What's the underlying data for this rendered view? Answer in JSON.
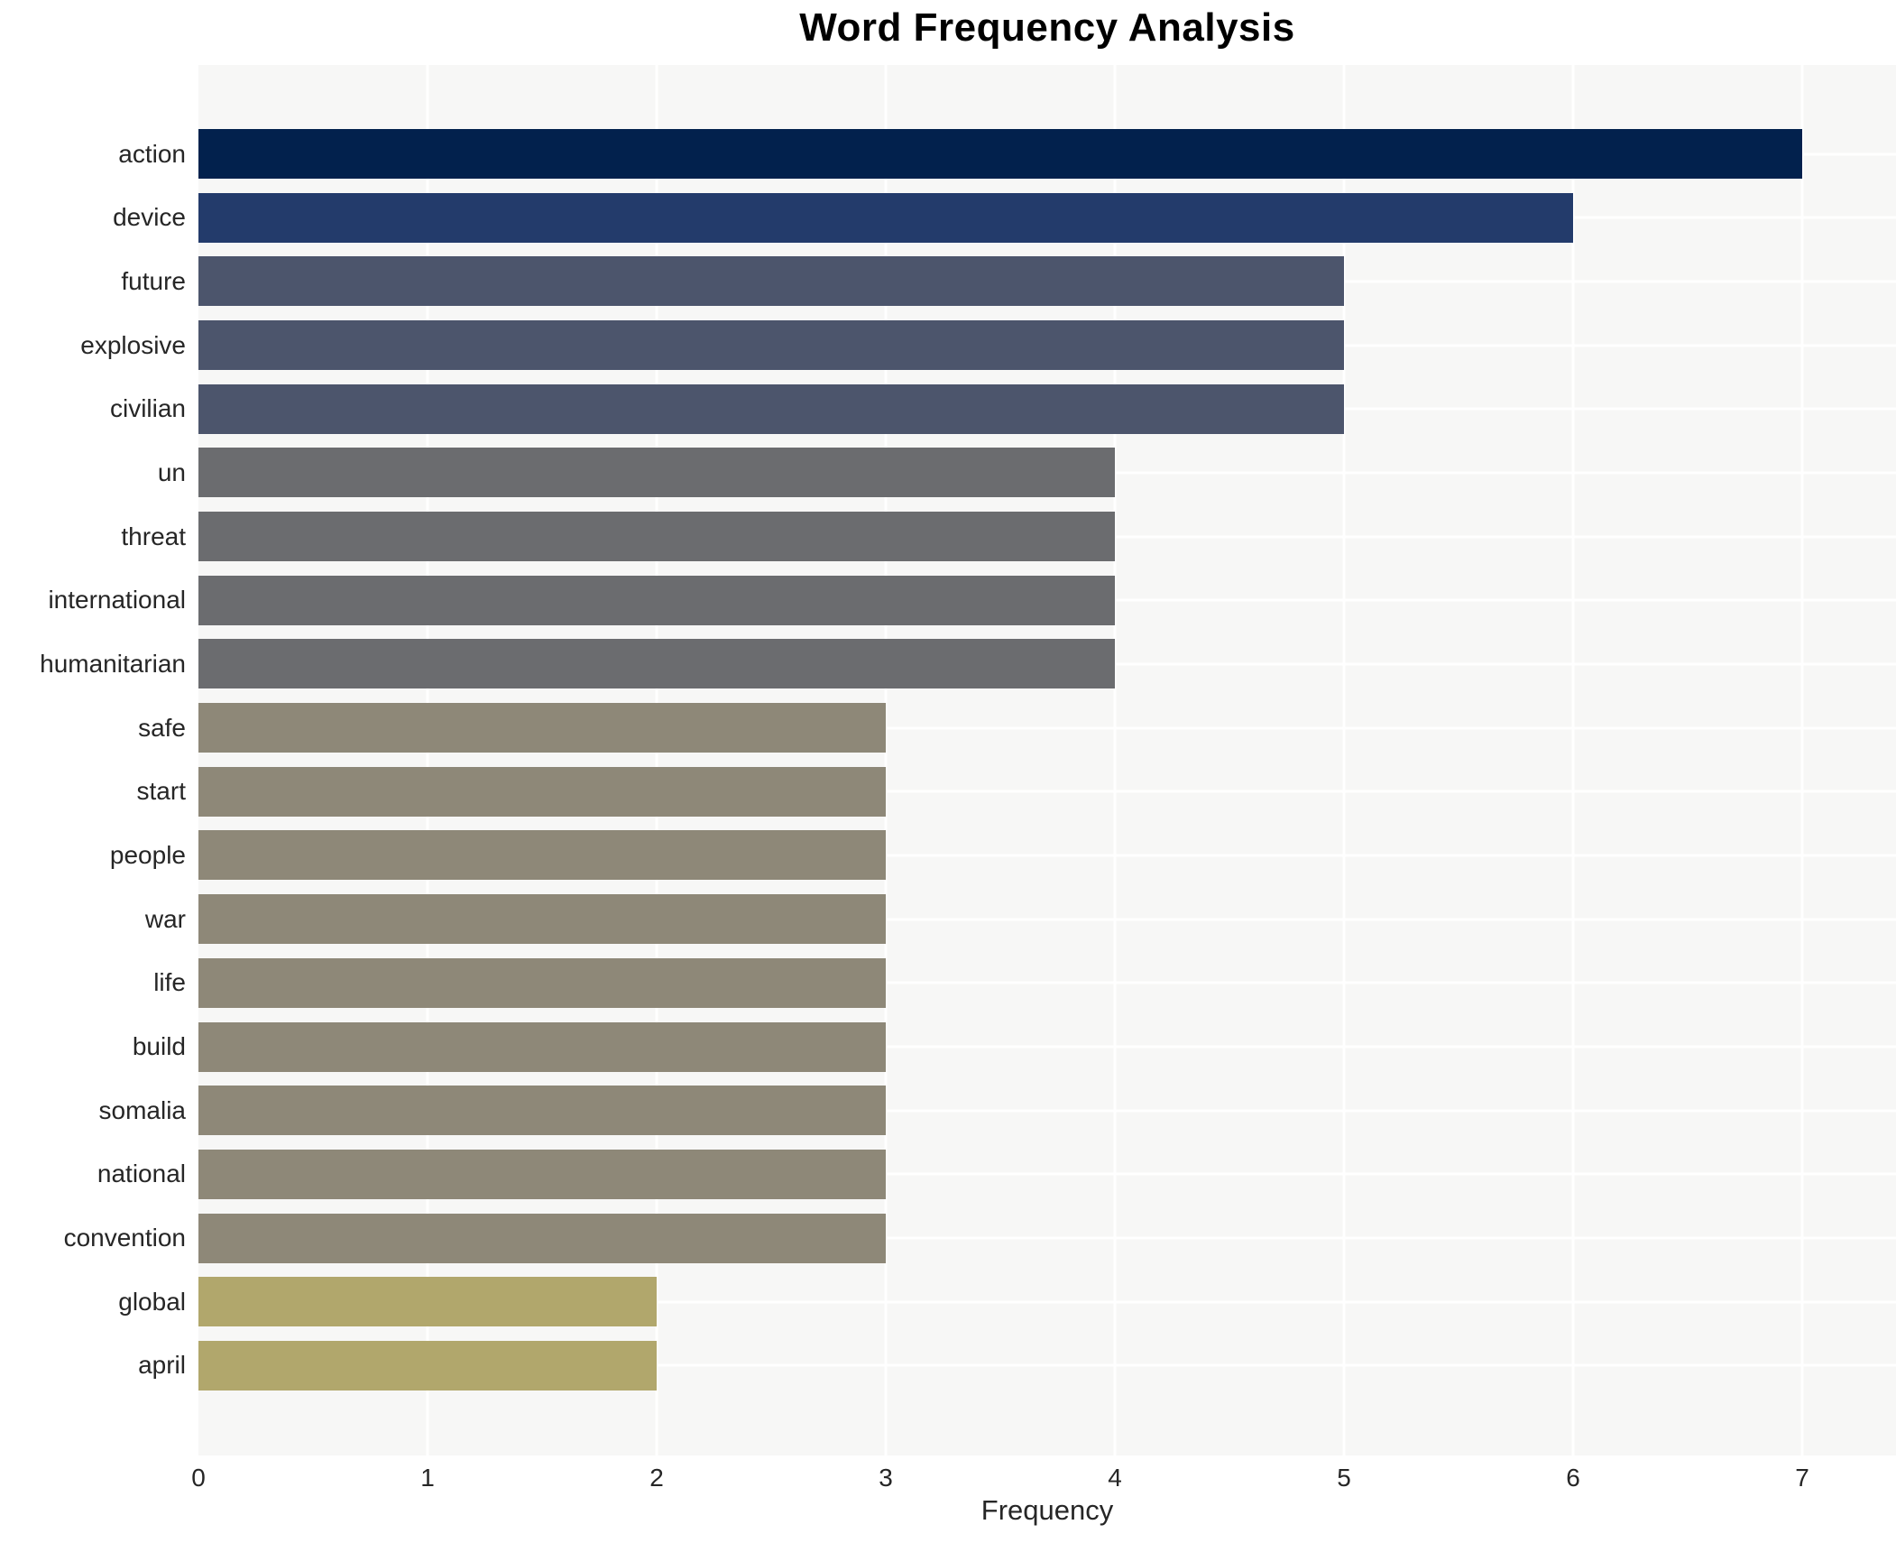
{
  "chart_data": {
    "type": "bar",
    "orientation": "horizontal",
    "title": "Word Frequency Analysis",
    "xlabel": "Frequency",
    "ylabel": "",
    "categories": [
      "action",
      "device",
      "future",
      "explosive",
      "civilian",
      "un",
      "threat",
      "international",
      "humanitarian",
      "safe",
      "start",
      "people",
      "war",
      "life",
      "build",
      "somalia",
      "national",
      "convention",
      "global",
      "april"
    ],
    "values": [
      7,
      6,
      5,
      5,
      5,
      4,
      4,
      4,
      4,
      3,
      3,
      3,
      3,
      3,
      3,
      3,
      3,
      3,
      2,
      2
    ],
    "bar_colors": [
      "#02214d",
      "#233b6b",
      "#4c556c",
      "#4c556c",
      "#4c556c",
      "#6b6c6f",
      "#6b6c6f",
      "#6b6c6f",
      "#6b6c6f",
      "#8e8878",
      "#8e8878",
      "#8e8878",
      "#8e8878",
      "#8e8878",
      "#8e8878",
      "#8e8878",
      "#8e8878",
      "#8e8878",
      "#b1a76c",
      "#b1a76c"
    ],
    "xticks": [
      0,
      1,
      2,
      3,
      4,
      5,
      6,
      7
    ],
    "xlim": [
      0,
      7.41
    ],
    "grid": true,
    "legend_position": "none",
    "plot_background": "#f7f7f6",
    "grid_color": "#ffffff",
    "text_color": "#262626"
  }
}
